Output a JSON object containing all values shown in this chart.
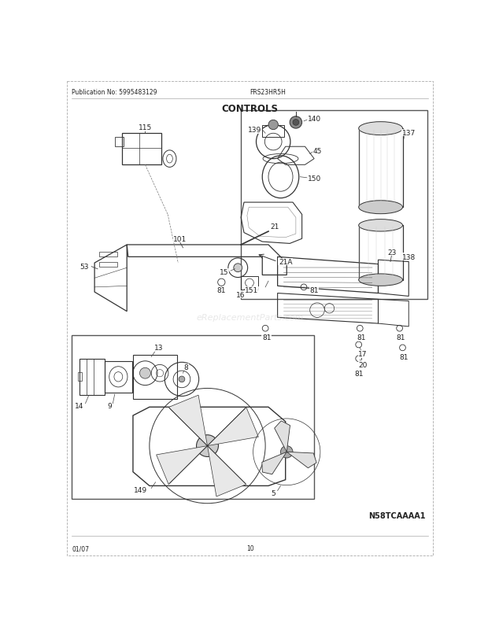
{
  "title": "CONTROLS",
  "pub_no": "Publication No: 5995483129",
  "model": "FRS23HR5H",
  "diagram_id": "N58TCAAAA1",
  "date": "01/07",
  "page": "10",
  "bg_color": "#ffffff",
  "line_color": "#333333",
  "text_color": "#222222",
  "watermark": "eReplacementParts.com"
}
